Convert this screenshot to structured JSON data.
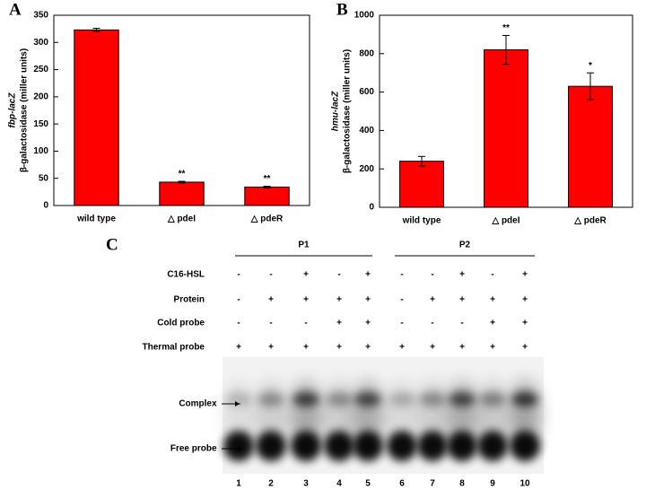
{
  "chart_data": [
    {
      "type": "bar",
      "panel_label": "A",
      "ylabel": [
        "fbp-lacZ",
        "β-galactosidase (miller units)"
      ],
      "categories": [
        "wild type",
        "△ pdeI",
        "△ pdeR"
      ],
      "values": [
        323,
        43,
        34
      ],
      "errors": [
        3,
        1.5,
        1.5
      ],
      "significance": [
        null,
        "**",
        "**"
      ],
      "color": "#ff0000",
      "ylim": [
        0,
        350
      ],
      "yticks": [
        0,
        50,
        100,
        150,
        200,
        250,
        300,
        350
      ]
    },
    {
      "type": "bar",
      "panel_label": "B",
      "ylabel": [
        "hmu-lacZ",
        "β-galactosidase (miller units)"
      ],
      "categories": [
        "wild type",
        "△ pdeI",
        "△ pdeR"
      ],
      "values": [
        240,
        820,
        630
      ],
      "errors": [
        25,
        75,
        70
      ],
      "significance": [
        null,
        "**",
        "*"
      ],
      "color": "#ff0000",
      "ylim": [
        0,
        1000
      ],
      "yticks": [
        0,
        200,
        400,
        600,
        800,
        1000
      ]
    }
  ],
  "gel": {
    "panel_label": "C",
    "groups": [
      {
        "label": "P1"
      },
      {
        "label": "P2"
      }
    ],
    "rows": [
      {
        "label": "C16-HSL",
        "signs": [
          "-",
          "-",
          "+",
          "-",
          "+",
          "-",
          "-",
          "+",
          "-",
          "+"
        ]
      },
      {
        "label": "Protein",
        "signs": [
          "-",
          "+",
          "+",
          "+",
          "+",
          "-",
          "+",
          "+",
          "+",
          "+"
        ]
      },
      {
        "label": "Cold probe",
        "signs": [
          "-",
          "-",
          "-",
          "+",
          "+",
          "-",
          "-",
          "-",
          "+",
          "+"
        ]
      },
      {
        "label": "Thermal probe",
        "signs": [
          "+",
          "+",
          "+",
          "+",
          "+",
          "+",
          "+",
          "+",
          "+",
          "+"
        ]
      }
    ],
    "bands": [
      "Complex",
      "Free probe"
    ],
    "lanes": [
      1,
      2,
      3,
      4,
      5,
      6,
      7,
      8,
      9,
      10
    ]
  }
}
